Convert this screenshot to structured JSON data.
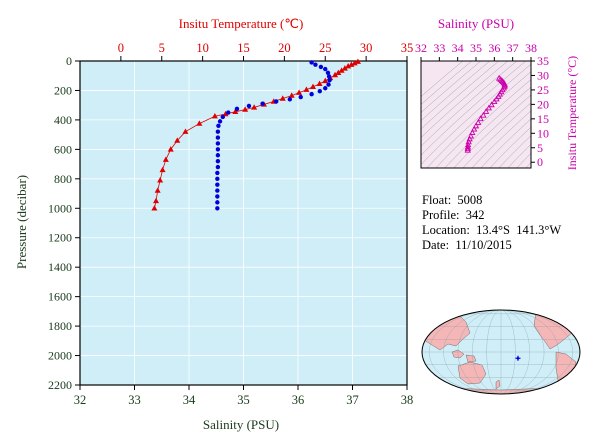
{
  "colors": {
    "plot_bg": "#cfeef8",
    "temperature": "#e00000",
    "salinity": "#0000dd",
    "ts_accent": "#cc00aa",
    "axis_dark": "#1a3a1a",
    "land": "#f4b6b6",
    "ocean": "#cfeef8"
  },
  "chart_data": [
    {
      "type": "line",
      "title": "",
      "ylabel": "Pressure (decibar)",
      "ylim": [
        2200,
        0
      ],
      "yticks": [
        0,
        200,
        400,
        600,
        800,
        1000,
        1200,
        1400,
        1600,
        1800,
        2000,
        2200
      ],
      "bottom_axis": {
        "label": "Salinity (PSU)",
        "range": [
          32,
          38
        ],
        "ticks": [
          32,
          33,
          34,
          35,
          36,
          37,
          38
        ]
      },
      "top_axis": {
        "label": "Insitu Temperature (℃)",
        "range": [
          -5,
          35
        ],
        "ticks": [
          0,
          5,
          10,
          15,
          20,
          25,
          30,
          35
        ]
      },
      "grid": true,
      "series": [
        {
          "axis": "top",
          "marker": "triangle",
          "points": [
            [
              29.0,
              5
            ],
            [
              28.6,
              15
            ],
            [
              28.2,
              25
            ],
            [
              27.8,
              35
            ],
            [
              27.4,
              50
            ],
            [
              27.0,
              65
            ],
            [
              26.6,
              80
            ],
            [
              26.2,
              95
            ],
            [
              25.6,
              115
            ],
            [
              25.0,
              135
            ],
            [
              24.3,
              155
            ],
            [
              23.5,
              175
            ],
            [
              22.7,
              195
            ],
            [
              21.8,
              215
            ],
            [
              20.9,
              235
            ],
            [
              19.8,
              255
            ],
            [
              18.7,
              275
            ],
            [
              17.5,
              295
            ],
            [
              16.3,
              315
            ],
            [
              15.2,
              330
            ],
            [
              14.0,
              345
            ],
            [
              12.8,
              360
            ],
            [
              11.5,
              375
            ],
            [
              9.6,
              425
            ],
            [
              7.9,
              480
            ],
            [
              6.9,
              540
            ],
            [
              6.1,
              600
            ],
            [
              5.5,
              670
            ],
            [
              5.1,
              740
            ],
            [
              4.8,
              810
            ],
            [
              4.5,
              880
            ],
            [
              4.3,
              950
            ],
            [
              4.1,
              1000
            ]
          ]
        },
        {
          "axis": "bottom",
          "marker": "circle",
          "points": [
            [
              36.25,
              10
            ],
            [
              36.32,
              25
            ],
            [
              36.42,
              40
            ],
            [
              36.5,
              55
            ],
            [
              36.55,
              80
            ],
            [
              36.57,
              105
            ],
            [
              36.58,
              130
            ],
            [
              36.56,
              160
            ],
            [
              36.5,
              185
            ],
            [
              36.4,
              205
            ],
            [
              36.25,
              225
            ],
            [
              36.05,
              245
            ],
            [
              35.85,
              260
            ],
            [
              35.6,
              275
            ],
            [
              35.35,
              290
            ],
            [
              35.1,
              305
            ],
            [
              34.88,
              325
            ],
            [
              34.72,
              350
            ],
            [
              34.62,
              380
            ],
            [
              34.57,
              410
            ],
            [
              34.54,
              440
            ],
            [
              34.53,
              480
            ],
            [
              34.53,
              520
            ],
            [
              34.53,
              560
            ],
            [
              34.53,
              600
            ],
            [
              34.53,
              640
            ],
            [
              34.53,
              680
            ],
            [
              34.53,
              720
            ],
            [
              34.52,
              760
            ],
            [
              34.52,
              800
            ],
            [
              34.52,
              840
            ],
            [
              34.52,
              880
            ],
            [
              34.52,
              920
            ],
            [
              34.52,
              960
            ],
            [
              34.52,
              1000
            ]
          ]
        }
      ]
    },
    {
      "type": "scatter",
      "title": "",
      "xlabel": "Salinity (PSU)",
      "ylabel": "Insitu Temperature (°C)",
      "xlim": [
        32,
        38
      ],
      "ylim": [
        -2,
        35
      ],
      "xticks": [
        32,
        33,
        34,
        35,
        36,
        37,
        38
      ],
      "yticks": [
        0,
        5,
        10,
        15,
        20,
        25,
        30,
        35
      ],
      "density_contours": true,
      "points": [
        [
          34.55,
          4.1
        ],
        [
          34.55,
          4.6
        ],
        [
          34.56,
          5.2
        ],
        [
          34.57,
          6.0
        ],
        [
          34.6,
          7.0
        ],
        [
          34.65,
          8.0
        ],
        [
          34.72,
          9.0
        ],
        [
          34.8,
          10.2
        ],
        [
          34.9,
          11.4
        ],
        [
          35.0,
          12.5
        ],
        [
          35.12,
          13.7
        ],
        [
          35.25,
          15.0
        ],
        [
          35.4,
          16.2
        ],
        [
          35.55,
          17.5
        ],
        [
          35.7,
          18.7
        ],
        [
          35.85,
          19.8
        ],
        [
          36.0,
          20.9
        ],
        [
          36.12,
          21.8
        ],
        [
          36.22,
          22.7
        ],
        [
          36.3,
          23.5
        ],
        [
          36.38,
          24.3
        ],
        [
          36.45,
          25.0
        ],
        [
          36.52,
          25.6
        ],
        [
          36.56,
          26.2
        ],
        [
          36.57,
          26.6
        ],
        [
          36.56,
          27.0
        ],
        [
          36.52,
          27.4
        ],
        [
          36.46,
          27.8
        ],
        [
          36.4,
          28.2
        ],
        [
          36.33,
          28.6
        ],
        [
          36.26,
          29.0
        ]
      ]
    }
  ],
  "float_info": {
    "float": "Float:  5008",
    "profile": "Profile:  342",
    "location": "Location:  13.4°S  141.3°W",
    "date": "Date:  11/10/2015"
  },
  "map": {
    "marker_lon": -141.3,
    "marker_lat": -13.4
  }
}
